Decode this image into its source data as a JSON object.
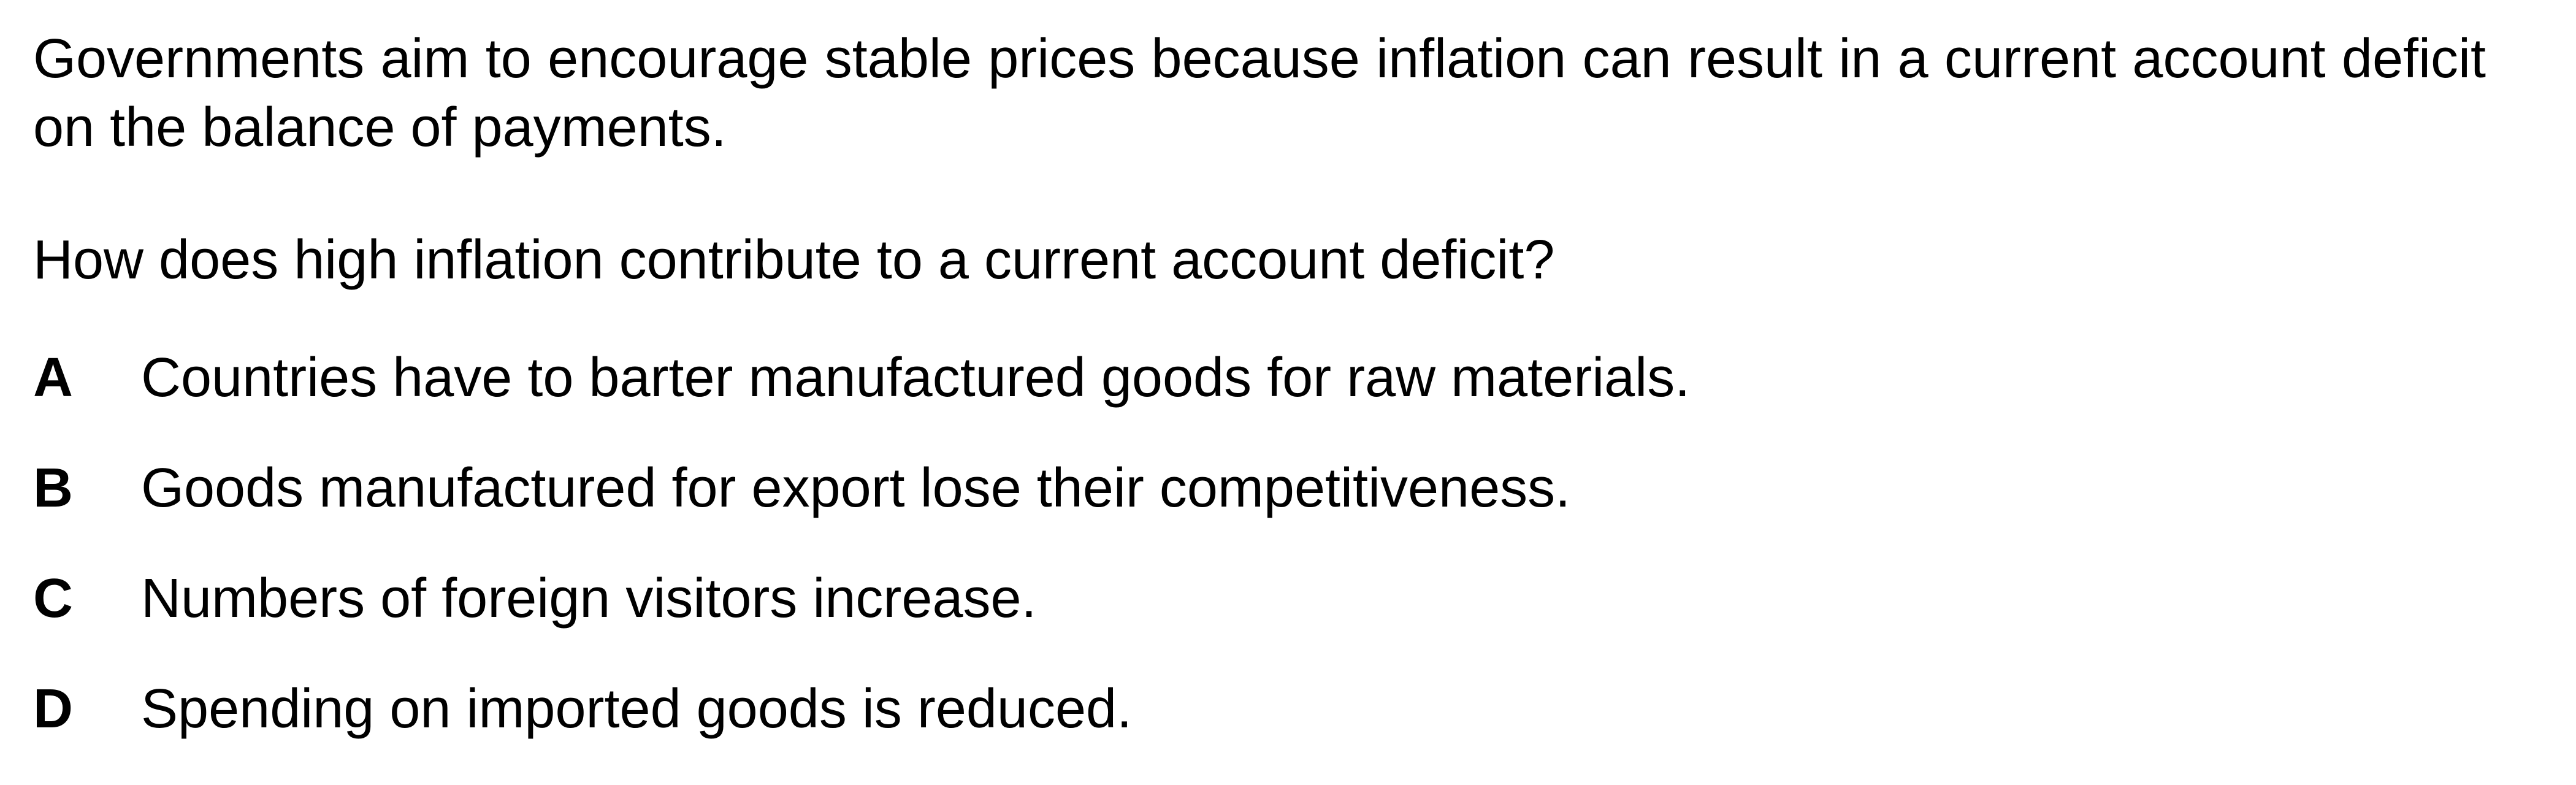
{
  "stem": "Governments aim to encourage stable prices because inflation can result in a current account deficit on the balance of payments.",
  "question": "How does high inflation contribute to a current account deficit?",
  "options": [
    {
      "letter": "A",
      "text": "Countries have to barter manufactured goods for raw materials."
    },
    {
      "letter": "B",
      "text": "Goods manufactured for export lose their competitiveness."
    },
    {
      "letter": "C",
      "text": "Numbers of foreign visitors increase."
    },
    {
      "letter": "D",
      "text": "Spending on imported goods is reduced."
    }
  ]
}
